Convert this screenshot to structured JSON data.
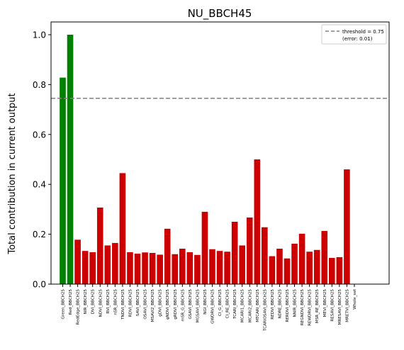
{
  "chart_data": {
    "type": "bar",
    "title": "NU_BBCH45",
    "xlabel": "",
    "ylabel": "Total contribution in current output",
    "ylim": [
      0,
      1.05
    ],
    "yticks": [
      0.0,
      0.2,
      0.4,
      0.6,
      0.8,
      1.0
    ],
    "ytick_labels": [
      "0.0",
      "0.2",
      "0.4",
      "0.6",
      "0.8",
      "1.0"
    ],
    "categories": [
      "Green_BBCH25",
      "Red_BBCH25",
      "RedEdge_BBCH25",
      "NIR_BBCH25",
      "DVI_BBCH25",
      "NDVI_BBCH25",
      "RVI_BBCH25",
      "nSR_BBCH25",
      "TNDVI_BBCH25",
      "RDVI_BBCH25",
      "SAVI_BBCH25",
      "OSAVI_BBCH25",
      "MSAVI2_BBCH25",
      "gDVI_BBCH25",
      "gNDVI_BBCH25",
      "gRDVI_BBCH25",
      "mSR_G_BBCH25",
      "GSAVI_BBCH25",
      "MGSAVI_BBCH25",
      "NGI_BBCH25",
      "GWDRVI_BBCH25",
      "CI_G_BBCH25",
      "CI_RE_BBCH25",
      "TCARI_BBCH25",
      "MCARI1_BBCH25",
      "MCARI2_BBCH25",
      "MTCARI_BBCH25",
      "TCARIOSAVI_BBCH25",
      "REDVI_BBCH25",
      "NDRE_BBCH25",
      "RERDVI_BBCH25",
      "NNIR_BBCH25",
      "REGNDVI_BBCH25",
      "REWDRVI_BBCH25",
      "MSR_RE_BBCH25",
      "MEVI_BBCH25",
      "RESAVI_BBCH25",
      "MRESAVI_BBCH25",
      "MRETVI_BBCH25",
      "Whole_set"
    ],
    "values": [
      0.828,
      1.0,
      0.178,
      0.133,
      0.128,
      0.307,
      0.155,
      0.165,
      0.445,
      0.128,
      0.122,
      0.127,
      0.125,
      0.118,
      0.222,
      0.12,
      0.142,
      0.128,
      0.117,
      0.29,
      0.14,
      0.133,
      0.13,
      0.25,
      0.155,
      0.267,
      0.5,
      0.228,
      0.112,
      0.142,
      0.103,
      0.162,
      0.202,
      0.13,
      0.137,
      0.213,
      0.105,
      0.108,
      0.46,
      0
    ],
    "bar_colors": [
      "#008000",
      "#008000",
      "#cc0000",
      "#cc0000",
      "#cc0000",
      "#cc0000",
      "#cc0000",
      "#cc0000",
      "#cc0000",
      "#cc0000",
      "#cc0000",
      "#cc0000",
      "#cc0000",
      "#cc0000",
      "#cc0000",
      "#cc0000",
      "#cc0000",
      "#cc0000",
      "#cc0000",
      "#cc0000",
      "#cc0000",
      "#cc0000",
      "#cc0000",
      "#cc0000",
      "#cc0000",
      "#cc0000",
      "#cc0000",
      "#cc0000",
      "#cc0000",
      "#cc0000",
      "#cc0000",
      "#cc0000",
      "#cc0000",
      "#cc0000",
      "#cc0000",
      "#cc0000",
      "#cc0000",
      "#cc0000",
      "#cc0000",
      "#cc0000"
    ],
    "threshold": {
      "value": 0.745,
      "color": "#808080",
      "style": "dashed",
      "legend_line1": "threshold = 0.75",
      "legend_line2": "(error: 0.01)"
    },
    "legend_position": "top-right",
    "grid": false
  }
}
